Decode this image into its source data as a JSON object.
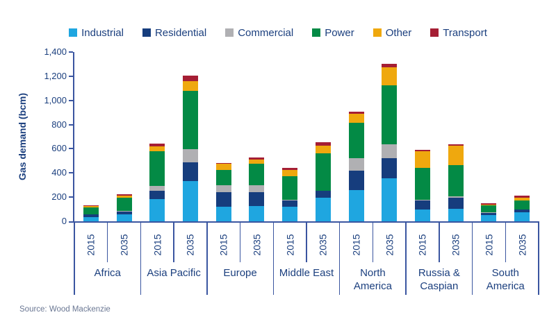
{
  "chart_data": {
    "type": "bar",
    "stacked": true,
    "title": "",
    "ylabel": "Gas demand (bcm)",
    "xlabel": "",
    "ylim": [
      0,
      1400
    ],
    "ytick_step": 200,
    "yticks": [
      "0",
      "200",
      "400",
      "600",
      "800",
      "1,000",
      "1,200",
      "1,400"
    ],
    "grid": false,
    "legend_position": "top",
    "years": [
      "2015",
      "2035"
    ],
    "groups": [
      "Africa",
      "Asia Pacific",
      "Europe",
      "Middle East",
      "North America",
      "Russia & Caspian",
      "South America"
    ],
    "group_display_lines": [
      [
        "Africa"
      ],
      [
        "Asia Pacific"
      ],
      [
        "Europe"
      ],
      [
        "Middle East"
      ],
      [
        "North",
        "America"
      ],
      [
        "Russia &",
        "Caspian"
      ],
      [
        "South",
        "America"
      ]
    ],
    "bar_order_note": "values are per bar: Africa 2015, Africa 2035, Asia Pacific 2015, Asia Pacific 2035, Europe 2015, Europe 2035, Middle East 2015, Middle East 2035, North America 2015, North America 2035, Russia & Caspian 2015, Russia & Caspian 2035, South America 2015, South America 2035",
    "series": [
      {
        "name": "Industrial",
        "color": "#1FA6E0",
        "values": [
          35,
          55,
          185,
          330,
          120,
          125,
          120,
          195,
          260,
          355,
          100,
          105,
          50,
          75
        ]
      },
      {
        "name": "Residential",
        "color": "#163D7D",
        "values": [
          20,
          25,
          65,
          155,
          120,
          115,
          55,
          55,
          160,
          170,
          75,
          90,
          20,
          20
        ]
      },
      {
        "name": "Commercial",
        "color": "#B0B0B3",
        "values": [
          5,
          5,
          45,
          110,
          60,
          60,
          5,
          5,
          100,
          110,
          5,
          10,
          5,
          5
        ]
      },
      {
        "name": "Power",
        "color": "#038A45",
        "values": [
          55,
          110,
          285,
          485,
          125,
          175,
          195,
          310,
          295,
          490,
          260,
          260,
          55,
          70
        ]
      },
      {
        "name": "Other",
        "color": "#EFA80E",
        "values": [
          10,
          20,
          40,
          80,
          50,
          35,
          50,
          60,
          75,
          150,
          140,
          160,
          10,
          25
        ]
      },
      {
        "name": "Transport",
        "color": "#A51E34",
        "values": [
          5,
          10,
          25,
          45,
          5,
          20,
          15,
          30,
          15,
          25,
          10,
          10,
          10,
          20
        ]
      }
    ]
  },
  "source": {
    "label": "Source: Wood Mackenzie"
  },
  "colors": {
    "axis": "#3A55A0",
    "text": "#1B3F7E",
    "source_text": "#6A7793",
    "background": "#FFFFFF"
  }
}
